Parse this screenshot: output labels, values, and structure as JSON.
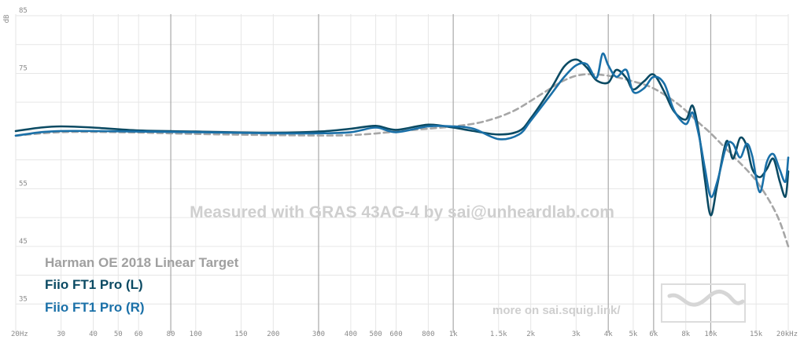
{
  "chart_data": {
    "type": "line",
    "title": "",
    "xlabel": "",
    "ylabel": "dB",
    "x_scale": "log",
    "xlim": [
      20,
      20000
    ],
    "ylim": [
      30,
      85
    ],
    "grid": true,
    "x_ticks": [
      {
        "value": 20,
        "label": "20Hz",
        "major": false
      },
      {
        "value": 30,
        "label": "30",
        "major": false
      },
      {
        "value": 40,
        "label": "40",
        "major": false
      },
      {
        "value": 50,
        "label": "50",
        "major": false
      },
      {
        "value": 60,
        "label": "60",
        "major": false
      },
      {
        "value": 80,
        "label": "80",
        "major": true
      },
      {
        "value": 100,
        "label": "100",
        "major": false
      },
      {
        "value": 150,
        "label": "150",
        "major": false
      },
      {
        "value": 200,
        "label": "200",
        "major": false
      },
      {
        "value": 300,
        "label": "300",
        "major": true
      },
      {
        "value": 400,
        "label": "400",
        "major": false
      },
      {
        "value": 500,
        "label": "500",
        "major": false
      },
      {
        "value": 600,
        "label": "600",
        "major": false
      },
      {
        "value": 800,
        "label": "800",
        "major": false
      },
      {
        "value": 1000,
        "label": "1k",
        "major": true
      },
      {
        "value": 1500,
        "label": "1.5k",
        "major": false
      },
      {
        "value": 2000,
        "label": "2k",
        "major": false
      },
      {
        "value": 3000,
        "label": "3k",
        "major": false
      },
      {
        "value": 4000,
        "label": "4k",
        "major": true
      },
      {
        "value": 5000,
        "label": "5k",
        "major": false
      },
      {
        "value": 6000,
        "label": "6k",
        "major": true
      },
      {
        "value": 8000,
        "label": "8k",
        "major": false
      },
      {
        "value": 10000,
        "label": "10k",
        "major": true
      },
      {
        "value": 15000,
        "label": "15k",
        "major": false
      },
      {
        "value": 20000,
        "label": "20kHz",
        "major": false
      }
    ],
    "y_ticks": [
      {
        "value": 85,
        "label": "85"
      },
      {
        "value": 75,
        "label": "75"
      },
      {
        "value": 55,
        "label": "55"
      },
      {
        "value": 45,
        "label": "45"
      },
      {
        "value": 35,
        "label": "35"
      }
    ],
    "y_gridlines": [
      85,
      80,
      75,
      70,
      65,
      60,
      55,
      50,
      45,
      40,
      35
    ],
    "series": [
      {
        "name": "Harman OE 2018 Linear Target",
        "color": "#a6a6a6",
        "dashed": true,
        "points": [
          [
            20,
            64.2
          ],
          [
            30,
            64.8
          ],
          [
            50,
            64.8
          ],
          [
            100,
            64.5
          ],
          [
            200,
            64.3
          ],
          [
            400,
            64.3
          ],
          [
            700,
            65.2
          ],
          [
            1000,
            65.8
          ],
          [
            1300,
            66.6
          ],
          [
            1700,
            68.4
          ],
          [
            2200,
            71.4
          ],
          [
            2700,
            73.8
          ],
          [
            3200,
            74.8
          ],
          [
            4000,
            74.6
          ],
          [
            5000,
            73.6
          ],
          [
            6000,
            72.4
          ],
          [
            7500,
            69.6
          ],
          [
            9000,
            66.4
          ],
          [
            10000,
            64.6
          ],
          [
            12000,
            61.0
          ],
          [
            15000,
            56.4
          ],
          [
            18000,
            50.6
          ],
          [
            20000,
            45.0
          ]
        ]
      },
      {
        "name": "Fiio FT1 Pro (L)",
        "color": "#0b4a63",
        "dashed": false,
        "points": [
          [
            20,
            65.0
          ],
          [
            25,
            65.6
          ],
          [
            30,
            65.8
          ],
          [
            40,
            65.6
          ],
          [
            60,
            65.1
          ],
          [
            100,
            64.9
          ],
          [
            200,
            64.7
          ],
          [
            300,
            64.9
          ],
          [
            400,
            65.4
          ],
          [
            500,
            65.9
          ],
          [
            600,
            65.2
          ],
          [
            800,
            66.1
          ],
          [
            1000,
            65.6
          ],
          [
            1200,
            65.0
          ],
          [
            1500,
            64.4
          ],
          [
            1800,
            65.0
          ],
          [
            2000,
            67.2
          ],
          [
            2400,
            72.4
          ],
          [
            2700,
            76.2
          ],
          [
            3000,
            77.4
          ],
          [
            3300,
            76.0
          ],
          [
            3600,
            73.8
          ],
          [
            4000,
            73.4
          ],
          [
            4300,
            75.6
          ],
          [
            4700,
            74.2
          ],
          [
            5000,
            72.2
          ],
          [
            5500,
            73.6
          ],
          [
            6000,
            74.8
          ],
          [
            6600,
            71.8
          ],
          [
            7200,
            68.4
          ],
          [
            8000,
            67.0
          ],
          [
            8500,
            69.4
          ],
          [
            9000,
            64.6
          ],
          [
            9500,
            56.4
          ],
          [
            10000,
            50.4
          ],
          [
            10600,
            55.6
          ],
          [
            11500,
            63.2
          ],
          [
            12200,
            60.2
          ],
          [
            13000,
            63.8
          ],
          [
            13800,
            62.4
          ],
          [
            14500,
            58.4
          ],
          [
            15500,
            57.0
          ],
          [
            16500,
            58.4
          ],
          [
            17500,
            60.2
          ],
          [
            18500,
            56.4
          ],
          [
            19500,
            53.6
          ],
          [
            20000,
            58.0
          ]
        ]
      },
      {
        "name": "Fiio FT1 Pro (R)",
        "color": "#1a70a8",
        "dashed": false,
        "points": [
          [
            20,
            64.2
          ],
          [
            25,
            64.8
          ],
          [
            30,
            65.0
          ],
          [
            40,
            65.0
          ],
          [
            60,
            64.9
          ],
          [
            100,
            64.8
          ],
          [
            200,
            64.6
          ],
          [
            300,
            64.6
          ],
          [
            400,
            64.8
          ],
          [
            500,
            65.6
          ],
          [
            600,
            64.8
          ],
          [
            800,
            65.8
          ],
          [
            1000,
            65.8
          ],
          [
            1200,
            65.4
          ],
          [
            1500,
            63.6
          ],
          [
            1800,
            64.4
          ],
          [
            2000,
            66.8
          ],
          [
            2400,
            71.4
          ],
          [
            2700,
            74.4
          ],
          [
            3000,
            76.4
          ],
          [
            3300,
            76.6
          ],
          [
            3600,
            74.2
          ],
          [
            3800,
            78.4
          ],
          [
            4000,
            76.4
          ],
          [
            4300,
            74.4
          ],
          [
            4700,
            75.6
          ],
          [
            5000,
            71.8
          ],
          [
            5500,
            72.4
          ],
          [
            6000,
            74.4
          ],
          [
            6600,
            73.2
          ],
          [
            7200,
            68.6
          ],
          [
            8000,
            66.2
          ],
          [
            8500,
            68.2
          ],
          [
            9000,
            64.2
          ],
          [
            9500,
            58.4
          ],
          [
            10000,
            53.6
          ],
          [
            10600,
            56.2
          ],
          [
            11500,
            62.4
          ],
          [
            12200,
            62.8
          ],
          [
            13000,
            60.4
          ],
          [
            13800,
            62.8
          ],
          [
            14500,
            60.6
          ],
          [
            15500,
            54.4
          ],
          [
            16500,
            59.6
          ],
          [
            17500,
            61.0
          ],
          [
            18500,
            58.4
          ],
          [
            19500,
            56.2
          ],
          [
            20000,
            60.4
          ]
        ]
      }
    ]
  },
  "watermark": "Measured with GRAS 43AG-4 by sai@unheardlab.com",
  "legend": {
    "target": "Harman OE 2018 Linear Target",
    "left": "Fiio FT1 Pro (L)",
    "right": "Fiio FT1 Pro (R)"
  },
  "footer": {
    "link_text": "more on sai.squig.link/",
    "logo_icon": "squiglink-logo-icon"
  }
}
